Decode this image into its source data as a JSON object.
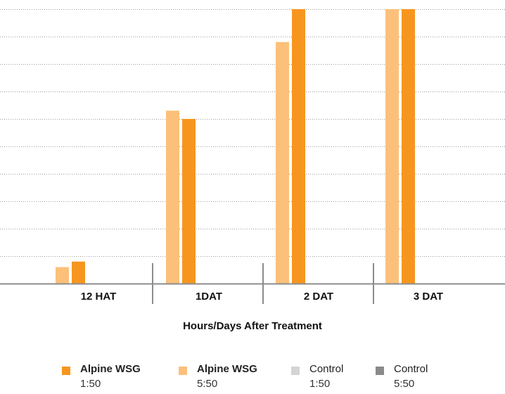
{
  "chart_data": {
    "type": "bar",
    "title": "",
    "xlabel": "Hours/Days After Treatment",
    "ylabel": "",
    "ylim": [
      0,
      100
    ],
    "grid": true,
    "legend_position": "bottom",
    "categories": [
      "12 HAT",
      "1DAT",
      "2 DAT",
      "3 DAT"
    ],
    "series": [
      {
        "name": "Alpine WSG 1:50",
        "values": [
          6,
          63,
          88,
          100
        ],
        "color": "#fcc07a"
      },
      {
        "name": "Alpine WSG 5:50",
        "values": [
          8,
          60,
          100,
          100
        ],
        "color": "#f7961e"
      },
      {
        "name": "Control 1:50",
        "values": [
          0,
          0,
          0,
          0
        ],
        "color": "#d4d4d4"
      },
      {
        "name": "Control 5:50",
        "values": [
          0,
          0,
          0,
          0
        ],
        "color": "#8a8a8a"
      }
    ]
  },
  "legend": [
    {
      "name": "Alpine WSG",
      "sub": "1:50",
      "color": "#f7961e",
      "bold": true
    },
    {
      "name": "Alpine WSG",
      "sub": "5:50",
      "color": "#fcc07a",
      "bold": true
    },
    {
      "name": "Control",
      "sub": "1:50",
      "color": "#d4d4d4",
      "bold": false
    },
    {
      "name": "Control",
      "sub": "5:50",
      "color": "#8a8a8a",
      "bold": false
    }
  ]
}
